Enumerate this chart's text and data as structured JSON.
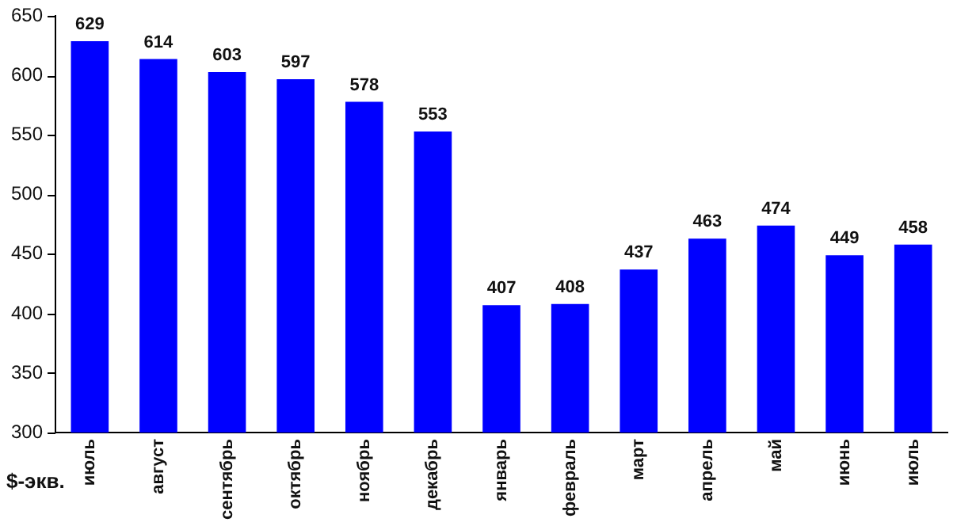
{
  "chart_data": {
    "type": "bar",
    "ylabel": "$-экв.",
    "categories": [
      "июль",
      "август",
      "сентябрь",
      "октябрь",
      "ноябрь",
      "декабрь",
      "январь",
      "февраль",
      "март",
      "апрель",
      "май",
      "июнь",
      "июль"
    ],
    "values": [
      629,
      614,
      603,
      597,
      578,
      553,
      407,
      408,
      437,
      463,
      474,
      449,
      458
    ],
    "color": "#0000ff",
    "ylim": [
      300,
      650
    ],
    "yticks": [
      300,
      350,
      400,
      450,
      500,
      550,
      600,
      650
    ],
    "grid": false,
    "data_labels": true,
    "legend": false
  }
}
